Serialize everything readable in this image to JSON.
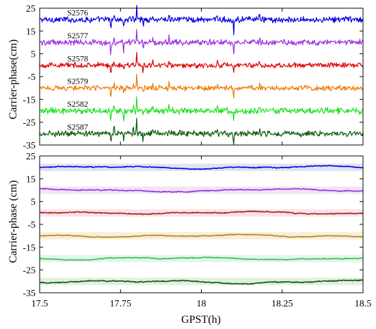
{
  "chart_data": [
    {
      "type": "line",
      "ylabel": "Carrier-phase(cm)",
      "ylim": [
        -35,
        25
      ],
      "yticks": [
        25,
        15,
        5,
        -5,
        -15,
        -25,
        -35
      ],
      "xlim": [
        17.5,
        18.5
      ],
      "grid": false,
      "series": [
        {
          "name": "S2576",
          "offset": 20,
          "color": "#0000e0",
          "noise": 0.9,
          "spike_scale": 1.0
        },
        {
          "name": "S2577",
          "offset": 10,
          "color": "#9a2ee0",
          "noise": 0.9,
          "spike_scale": 1.0
        },
        {
          "name": "S2578",
          "offset": 0,
          "color": "#e00000",
          "noise": 0.8,
          "spike_scale": 0.9
        },
        {
          "name": "S2579",
          "offset": -10,
          "color": "#f07800",
          "noise": 0.8,
          "spike_scale": 0.9
        },
        {
          "name": "S2582",
          "offset": -20,
          "color": "#20e020",
          "noise": 1.0,
          "spike_scale": 1.0
        },
        {
          "name": "S2587",
          "offset": -30,
          "color": "#0a5a0a",
          "noise": 0.9,
          "spike_scale": 1.0
        }
      ],
      "spikes": [
        {
          "x": 17.72,
          "dy": -6
        },
        {
          "x": 17.73,
          "dy": 3
        },
        {
          "x": 17.76,
          "dy": -4
        },
        {
          "x": 17.79,
          "dy": 2
        },
        {
          "x": 17.8,
          "dy": 5
        },
        {
          "x": 17.82,
          "dy": -3
        },
        {
          "x": 17.85,
          "dy": 2
        },
        {
          "x": 17.9,
          "dy": 3
        },
        {
          "x": 18.05,
          "dy": 2
        },
        {
          "x": 18.1,
          "dy": -5
        },
        {
          "x": 18.18,
          "dy": 2
        }
      ]
    },
    {
      "type": "line",
      "ylabel": "Carrier-phase (cm)",
      "xlabel": "GPST(h)",
      "ylim": [
        -35,
        25
      ],
      "yticks": [
        25,
        15,
        5,
        -5,
        -15,
        -25,
        -35
      ],
      "xlim": [
        17.5,
        18.5
      ],
      "xticks": [
        17.5,
        17.75,
        18,
        18.25,
        18.5
      ],
      "xtick_labels": [
        "17.5",
        "17.75",
        "18",
        "18.25",
        "18.5"
      ],
      "grid": false,
      "series": [
        {
          "offset": 20,
          "color": "#0000e0",
          "band": "#c8c8f0",
          "noise": 0.25
        },
        {
          "offset": 10,
          "color": "#9a2ee0",
          "band": "#e4cdf3",
          "noise": 0.3
        },
        {
          "offset": 0,
          "color": "#9a2a10",
          "band": "#f4c8dc",
          "noise": 0.3
        },
        {
          "offset": -10,
          "color": "#b8860b",
          "band": "#eedfc0",
          "noise": 0.25
        },
        {
          "offset": -20,
          "color": "#40c040",
          "band": "#c4f0e4",
          "noise": 0.3
        },
        {
          "offset": -30,
          "color": "#0a5a0a",
          "band": "#c8e0c8",
          "noise": 0.3
        }
      ]
    }
  ]
}
